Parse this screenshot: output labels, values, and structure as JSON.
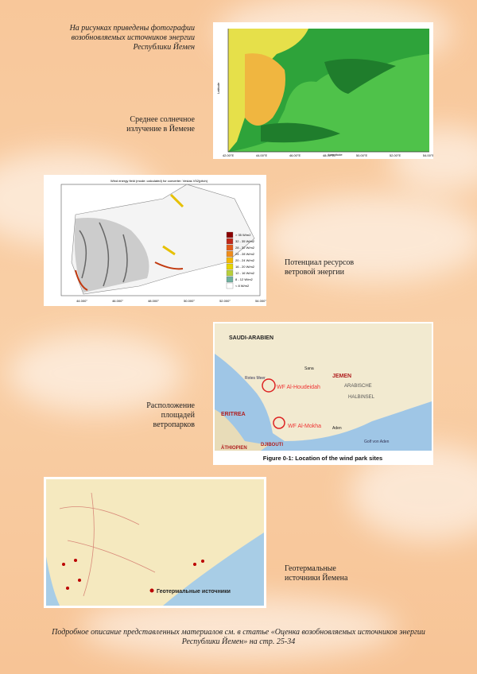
{
  "intro": [
    "На рисунках приведены фотографии",
    "возобновляемых источников энергии",
    "Республики Йемен"
  ],
  "solar": {
    "caption": [
      "Среднее солнечное",
      "излучение в Йемене"
    ],
    "x_label": "Longitude",
    "y_label": "Latitude",
    "x_ticks": [
      "42.00°E",
      "44.00°E",
      "46.00°E",
      "48.00°E",
      "50.00°E",
      "52.00°E",
      "54.00°E"
    ]
  },
  "wind": {
    "caption": [
      "Потенциал ресурсов",
      "ветровой энергии"
    ],
    "title": "Wind energy field (mode: calculated) for converter: Vestas V52(pitch)",
    "legend": [
      "> 35 W/m2",
      "32 - 35 W/m2",
      "28 - 32 W/m2",
      "24 - 28 W/m2",
      "20 - 24 W/m2",
      "16 - 20 W/m2",
      "12 - 16 W/m2",
      "8 - 12 W/m2",
      "< 8 W/m2"
    ],
    "x_ticks": [
      "44.000°",
      "46.000°",
      "48.000°",
      "50.000°",
      "52.000°",
      "54.000°"
    ]
  },
  "parks": {
    "caption": [
      "Расположение",
      "площадей",
      "ветропарков"
    ],
    "labels": [
      "SAUDI-ARABIEN",
      "JEMEN",
      "ARABISCHE",
      "HALBINSEL",
      "Rotes Meer",
      "ERITREA",
      "ÄTHIOPIEN",
      "DJIBOUTI",
      "Golf von Aden",
      "Sana",
      "Aden"
    ],
    "sites": [
      "WF Al-Houdeidah",
      "WF Al-Mokha"
    ],
    "figure_caption": "Figure 0-1: Location of the wind park sites"
  },
  "geo": {
    "caption": [
      "Геотермальные",
      "источники Йемена"
    ],
    "legend": "Геотермальные источники"
  },
  "footer": [
    "Подробное описание представленных материалов см. в статье «Оценка возобновляемых источников энергии",
    "Республики Йемен» на стр. 25-34"
  ]
}
